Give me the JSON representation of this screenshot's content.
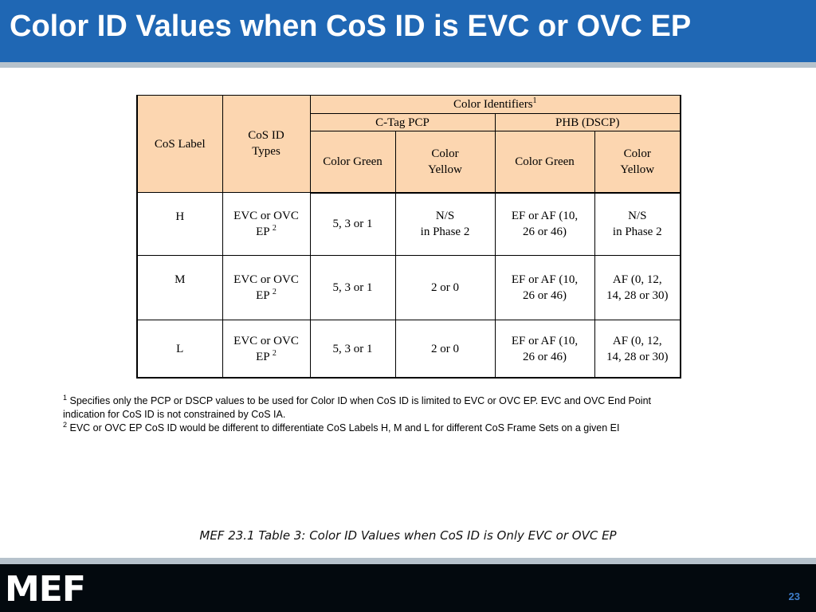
{
  "slide": {
    "title": "Color ID Values when CoS ID is EVC or OVC EP",
    "caption": "MEF 23.1 Table 3: Color ID Values when CoS ID is Only EVC or OVC EP",
    "page_number": "23",
    "logo_text": "MEF"
  },
  "table": {
    "headers": {
      "cos_label": "CoS Label",
      "cos_id_types_line1": "CoS ID",
      "cos_id_types_line2": "Types",
      "color_identifiers": "Color Identifiers",
      "color_identifiers_sup": "1",
      "ctag_pcp": "C-Tag PCP",
      "phb_dscp": "PHB (DSCP)",
      "ctag_color_green": "Color Green",
      "ctag_color_yellow_line1": "Color",
      "ctag_color_yellow_line2": "Yellow",
      "phb_color_green": "Color Green",
      "phb_color_yellow_line1": "Color",
      "phb_color_yellow_line2": "Yellow"
    },
    "rows": [
      {
        "label": "H",
        "id_types_line1": "EVC or OVC",
        "id_types_line2": "EP",
        "id_types_sup": "2",
        "pcp_green": "5, 3 or 1",
        "pcp_yellow_line1": "N/S",
        "pcp_yellow_line2": "in Phase 2",
        "dscp_green_line1": "EF or AF (10,",
        "dscp_green_line2": "26 or 46)",
        "dscp_yellow_line1": "N/S",
        "dscp_yellow_line2": "in Phase 2"
      },
      {
        "label": "M",
        "id_types_line1": "EVC or OVC",
        "id_types_line2": "EP",
        "id_types_sup": "2",
        "pcp_green": "5, 3 or 1",
        "pcp_yellow_line1": "2 or 0",
        "pcp_yellow_line2": "",
        "dscp_green_line1": "EF or AF (10,",
        "dscp_green_line2": "26 or 46)",
        "dscp_yellow_line1": "AF (0, 12,",
        "dscp_yellow_line2": "14, 28 or 30)"
      },
      {
        "label": "L",
        "id_types_line1": "EVC or OVC",
        "id_types_line2": "EP",
        "id_types_sup": "2",
        "pcp_green": "5, 3 or 1",
        "pcp_yellow_line1": "2 or 0",
        "pcp_yellow_line2": "",
        "dscp_green_line1": "EF or AF (10,",
        "dscp_green_line2": "26 or 46)",
        "dscp_yellow_line1": "AF (0, 12,",
        "dscp_yellow_line2": "14, 28 or 30)"
      }
    ]
  },
  "notes": {
    "note1_sup": "1",
    "note1_line1": "Specifies only the PCP or DSCP values to be used for Color ID when CoS ID is limited to EVC or OVC EP. EVC and OVC End Point",
    "note1_line2": "indication for CoS ID is not constrained by CoS IA.",
    "note2_sup": "2",
    "note2": "EVC or OVC EP CoS ID would be different to differentiate CoS Labels H, M and L for different CoS Frame Sets on a given EI"
  },
  "colors": {
    "title_bar": "#1f67b4",
    "header_fill": "#fcd6b0",
    "footer": "#03090e",
    "page_number": "#3d7cc9"
  }
}
